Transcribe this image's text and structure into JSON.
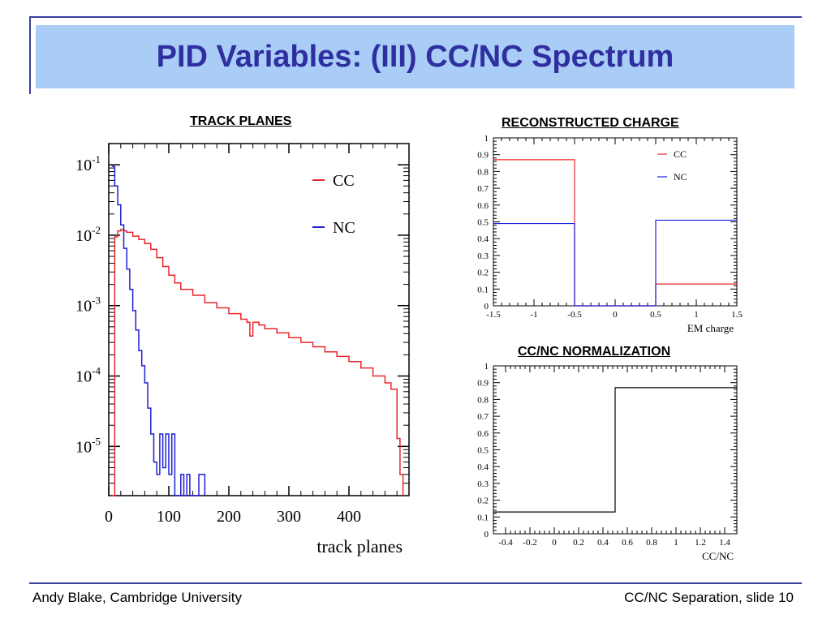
{
  "slide": {
    "title": "PID Variables: (III) CC/NC Spectrum",
    "footer_left": "Andy Blake, Cambridge University",
    "footer_right": "CC/NC Separation, slide 10"
  },
  "colors": {
    "cc": "#e8262b",
    "nc": "#1f1fd6",
    "title_bg": "#a9cdf7",
    "title_text": "#2f2f9f",
    "rule": "#3b3f9e"
  },
  "chart_data": [
    {
      "type": "line",
      "title": "TRACK PLANES",
      "xlabel": "track planes",
      "ylabel": "",
      "xlim": [
        0,
        500
      ],
      "ylim": [
        2e-06,
        0.2
      ],
      "yscale": "log",
      "x_ticks": [
        "0",
        "100",
        "200",
        "300",
        "400"
      ],
      "x_tick_values": [
        0,
        100,
        200,
        300,
        400
      ],
      "y_ticks": [
        {
          "base": "10",
          "exp": "-1",
          "value": 0.1
        },
        {
          "base": "10",
          "exp": "-2",
          "value": 0.01
        },
        {
          "base": "10",
          "exp": "-3",
          "value": 0.001
        },
        {
          "base": "10",
          "exp": "-4",
          "value": 0.0001
        },
        {
          "base": "10",
          "exp": "-5",
          "value": 1e-05
        }
      ],
      "legend_position": "top-right",
      "series": [
        {
          "name": "CC",
          "x": [
            5,
            10,
            15,
            20,
            25,
            30,
            40,
            50,
            60,
            70,
            80,
            90,
            100,
            110,
            120,
            140,
            160,
            180,
            200,
            220,
            230,
            235,
            240,
            250,
            260,
            280,
            300,
            320,
            340,
            360,
            380,
            400,
            420,
            440,
            460,
            470,
            480,
            485,
            490
          ],
          "y": [
            2e-06,
            0.0095,
            0.0115,
            0.012,
            0.0115,
            0.011,
            0.0097,
            0.0087,
            0.0076,
            0.0063,
            0.0048,
            0.0036,
            0.0027,
            0.0021,
            0.0017,
            0.0014,
            0.0011,
            0.00093,
            0.00077,
            0.00064,
            0.00058,
            0.00037,
            0.00058,
            0.00053,
            0.00047,
            0.00041,
            0.00035,
            0.0003,
            0.00026,
            0.00022,
            0.00019,
            0.00016,
            0.00013,
            0.0001,
            8e-05,
            6.5e-05,
            1.3e-05,
            4e-06,
            2e-06
          ]
        },
        {
          "name": "NC",
          "x": [
            5,
            10,
            15,
            20,
            25,
            30,
            35,
            40,
            45,
            50,
            55,
            60,
            65,
            70,
            75,
            80,
            85,
            90,
            95,
            100,
            105,
            110,
            115,
            120,
            125,
            130,
            135,
            140,
            145,
            150,
            155,
            160
          ],
          "y": [
            0.095,
            0.05,
            0.027,
            0.014,
            0.0065,
            0.0033,
            0.0017,
            0.00085,
            0.00045,
            0.00023,
            0.00014,
            8e-05,
            3.5e-05,
            1.5e-05,
            6e-06,
            4e-06,
            1.5e-05,
            5e-06,
            1.5e-05,
            4e-06,
            1.5e-05,
            2e-06,
            2e-06,
            4e-06,
            2e-06,
            4e-06,
            2e-06,
            2e-06,
            2e-06,
            4e-06,
            4e-06,
            2e-06
          ]
        }
      ]
    },
    {
      "type": "line",
      "title": "RECONSTRUCTED CHARGE",
      "xlabel": "EM charge",
      "ylabel": "",
      "xlim": [
        -1.5,
        1.5
      ],
      "ylim": [
        0,
        1
      ],
      "x_ticks": [
        "-1.5",
        "-1",
        "-0.5",
        "0",
        "0.5",
        "1",
        "1.5"
      ],
      "x_tick_values": [
        -1.5,
        -1,
        -0.5,
        0,
        0.5,
        1,
        1.5
      ],
      "y_ticks": [
        "0",
        "0.1",
        "0.2",
        "0.3",
        "0.4",
        "0.5",
        "0.6",
        "0.7",
        "0.8",
        "0.9",
        "1"
      ],
      "y_tick_values": [
        0,
        0.1,
        0.2,
        0.3,
        0.4,
        0.5,
        0.6,
        0.7,
        0.8,
        0.9,
        1
      ],
      "legend_position": "top-right",
      "series": [
        {
          "name": "CC",
          "edges": [
            -1.5,
            -0.5,
            0.5,
            1.5
          ],
          "values": [
            0.87,
            0.0,
            0.13
          ]
        },
        {
          "name": "NC",
          "edges": [
            -1.5,
            -0.5,
            0.5,
            1.5
          ],
          "values": [
            0.49,
            0.0,
            0.51
          ]
        }
      ]
    },
    {
      "type": "line",
      "title": "CC/NC NORMALIZATION",
      "xlabel": "CC/NC",
      "ylabel": "",
      "xlim": [
        -0.5,
        1.5
      ],
      "ylim": [
        0,
        1
      ],
      "x_ticks": [
        "-0.4",
        "-0.2",
        "0",
        "0.2",
        "0.4",
        "0.6",
        "0.8",
        "1",
        "1.2",
        "1.4"
      ],
      "x_tick_values": [
        -0.4,
        -0.2,
        0,
        0.2,
        0.4,
        0.6,
        0.8,
        1,
        1.2,
        1.4
      ],
      "y_ticks": [
        "0",
        "0.1",
        "0.2",
        "0.3",
        "0.4",
        "0.5",
        "0.6",
        "0.7",
        "0.8",
        "0.9",
        "1"
      ],
      "y_tick_values": [
        0,
        0.1,
        0.2,
        0.3,
        0.4,
        0.5,
        0.6,
        0.7,
        0.8,
        0.9,
        1
      ],
      "series": [
        {
          "edges": [
            -0.5,
            0.5,
            1.5
          ],
          "values": [
            0.13,
            0.87
          ]
        }
      ]
    }
  ]
}
